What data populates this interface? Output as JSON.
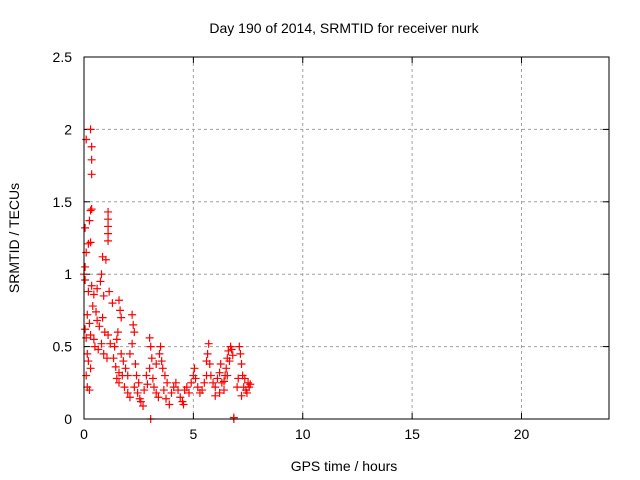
{
  "chart_data": {
    "type": "scatter",
    "title": "Day 190 of 2014, SRMTID for receiver nurk",
    "xlabel": "GPS time / hours",
    "ylabel": "SRMTID / TECUs",
    "xlim": [
      0,
      24
    ],
    "ylim": [
      0,
      2.5
    ],
    "xticks": [
      "0",
      "5",
      "10",
      "15",
      "20"
    ],
    "xtick_values": [
      0,
      5,
      10,
      15,
      20
    ],
    "yticks": [
      "0",
      "0.5",
      "1",
      "1.5",
      "2",
      "2.5"
    ],
    "ytick_values": [
      0,
      0.5,
      1,
      1.5,
      2,
      2.5
    ],
    "grid": true,
    "marker": "+",
    "color": "#ff0000",
    "series": [
      {
        "name": "SRMTID",
        "points": [
          [
            0.3,
            2.0
          ],
          [
            0.1,
            1.93
          ],
          [
            0.35,
            1.88
          ],
          [
            0.35,
            1.79
          ],
          [
            0.35,
            1.69
          ],
          [
            0.35,
            1.45
          ],
          [
            0.3,
            1.44
          ],
          [
            0.25,
            1.37
          ],
          [
            1.1,
            1.43
          ],
          [
            1.1,
            1.38
          ],
          [
            1.1,
            1.33
          ],
          [
            1.1,
            1.28
          ],
          [
            1.1,
            1.23
          ],
          [
            0.05,
            1.32
          ],
          [
            0.3,
            1.22
          ],
          [
            0.2,
            1.21
          ],
          [
            0.1,
            1.15
          ],
          [
            1.0,
            1.1
          ],
          [
            0.85,
            1.12
          ],
          [
            0.05,
            1.05
          ],
          [
            0.0,
            1.0
          ],
          [
            0.05,
            0.96
          ],
          [
            0.2,
            0.88
          ],
          [
            0.35,
            0.92
          ],
          [
            0.45,
            0.86
          ],
          [
            0.6,
            0.9
          ],
          [
            0.75,
            0.95
          ],
          [
            0.8,
            1.0
          ],
          [
            0.9,
            0.85
          ],
          [
            1.15,
            0.88
          ],
          [
            1.3,
            0.8
          ],
          [
            0.4,
            0.78
          ],
          [
            0.55,
            0.74
          ],
          [
            0.6,
            0.68
          ],
          [
            0.7,
            0.64
          ],
          [
            0.85,
            0.7
          ],
          [
            0.95,
            0.6
          ],
          [
            1.1,
            0.58
          ],
          [
            1.2,
            0.52
          ],
          [
            0.15,
            0.72
          ],
          [
            0.25,
            0.66
          ],
          [
            0.3,
            0.58
          ],
          [
            0.45,
            0.55
          ],
          [
            0.5,
            0.5
          ],
          [
            0.65,
            0.48
          ],
          [
            0.8,
            0.52
          ],
          [
            0.9,
            0.45
          ],
          [
            1.05,
            0.42
          ],
          [
            0.1,
            0.56
          ],
          [
            0.15,
            0.45
          ],
          [
            0.2,
            0.4
          ],
          [
            0.3,
            0.35
          ],
          [
            0.1,
            0.3
          ],
          [
            0.15,
            0.22
          ],
          [
            0.25,
            0.2
          ],
          [
            0.05,
            0.62
          ],
          [
            1.6,
            0.82
          ],
          [
            1.65,
            0.75
          ],
          [
            1.7,
            0.7
          ],
          [
            1.55,
            0.6
          ],
          [
            1.5,
            0.55
          ],
          [
            1.4,
            0.5
          ],
          [
            1.35,
            0.42
          ],
          [
            1.45,
            0.36
          ],
          [
            1.6,
            0.32
          ],
          [
            1.7,
            0.45
          ],
          [
            1.8,
            0.4
          ],
          [
            1.9,
            0.35
          ],
          [
            1.5,
            0.28
          ],
          [
            1.6,
            0.25
          ],
          [
            1.75,
            0.3
          ],
          [
            1.85,
            0.22
          ],
          [
            2.0,
            0.18
          ],
          [
            2.1,
            0.15
          ],
          [
            2.2,
            0.72
          ],
          [
            2.25,
            0.65
          ],
          [
            2.3,
            0.6
          ],
          [
            2.2,
            0.52
          ],
          [
            2.1,
            0.45
          ],
          [
            2.35,
            0.38
          ],
          [
            2.4,
            0.3
          ],
          [
            2.0,
            0.3
          ],
          [
            2.3,
            0.22
          ],
          [
            2.45,
            0.18
          ],
          [
            2.55,
            0.14
          ],
          [
            2.6,
            0.12
          ],
          [
            2.7,
            0.09
          ],
          [
            2.5,
            0.25
          ],
          [
            2.75,
            0.2
          ],
          [
            2.9,
            0.24
          ],
          [
            3.0,
            0.56
          ],
          [
            3.05,
            0.5
          ],
          [
            3.1,
            0.42
          ],
          [
            3.0,
            0.35
          ],
          [
            2.85,
            0.3
          ],
          [
            3.15,
            0.28
          ],
          [
            3.2,
            0.22
          ],
          [
            3.3,
            0.18
          ],
          [
            3.4,
            0.15
          ],
          [
            3.5,
            0.5
          ],
          [
            3.45,
            0.45
          ],
          [
            3.55,
            0.4
          ],
          [
            3.6,
            0.35
          ],
          [
            3.3,
            0.38
          ],
          [
            3.7,
            0.3
          ],
          [
            3.8,
            0.25
          ],
          [
            3.65,
            0.2
          ],
          [
            3.75,
            0.14
          ],
          [
            3.9,
            0.1
          ],
          [
            4.0,
            0.18
          ],
          [
            4.1,
            0.22
          ],
          [
            4.2,
            0.25
          ],
          [
            4.3,
            0.2
          ],
          [
            4.4,
            0.15
          ],
          [
            4.5,
            0.12
          ],
          [
            4.55,
            0.1
          ],
          [
            4.6,
            0.2
          ],
          [
            4.7,
            0.22
          ],
          [
            4.8,
            0.18
          ],
          [
            4.9,
            0.25
          ],
          [
            5.0,
            0.3
          ],
          [
            5.05,
            0.35
          ],
          [
            5.1,
            0.28
          ],
          [
            5.2,
            0.22
          ],
          [
            5.3,
            0.18
          ],
          [
            5.4,
            0.2
          ],
          [
            5.5,
            0.25
          ],
          [
            5.6,
            0.3
          ],
          [
            5.6,
            0.4
          ],
          [
            5.65,
            0.45
          ],
          [
            5.7,
            0.52
          ],
          [
            5.75,
            0.38
          ],
          [
            5.8,
            0.3
          ],
          [
            5.9,
            0.25
          ],
          [
            6.0,
            0.22
          ],
          [
            6.1,
            0.28
          ],
          [
            6.2,
            0.32
          ],
          [
            6.25,
            0.38
          ],
          [
            6.3,
            0.25
          ],
          [
            6.4,
            0.2
          ],
          [
            6.45,
            0.3
          ],
          [
            6.5,
            0.35
          ],
          [
            6.55,
            0.42
          ],
          [
            6.6,
            0.47
          ],
          [
            6.7,
            0.5
          ],
          [
            6.75,
            0.48
          ],
          [
            6.8,
            0.44
          ],
          [
            6.65,
            0.4
          ],
          [
            6.55,
            0.3
          ],
          [
            6.4,
            0.26
          ],
          [
            6.2,
            0.18
          ],
          [
            6.0,
            0.16
          ],
          [
            7.0,
            0.22
          ],
          [
            7.05,
            0.28
          ],
          [
            7.1,
            0.5
          ],
          [
            7.15,
            0.45
          ],
          [
            7.2,
            0.38
          ],
          [
            7.25,
            0.3
          ],
          [
            7.3,
            0.22
          ],
          [
            7.4,
            0.2
          ],
          [
            7.5,
            0.25
          ],
          [
            7.55,
            0.22
          ],
          [
            7.45,
            0.18
          ],
          [
            7.35,
            0.28
          ],
          [
            7.2,
            0.16
          ],
          [
            7.6,
            0.24
          ],
          [
            3.05,
            0.0
          ],
          [
            6.85,
            0.0
          ],
          [
            6.85,
            0.01
          ]
        ]
      }
    ]
  }
}
